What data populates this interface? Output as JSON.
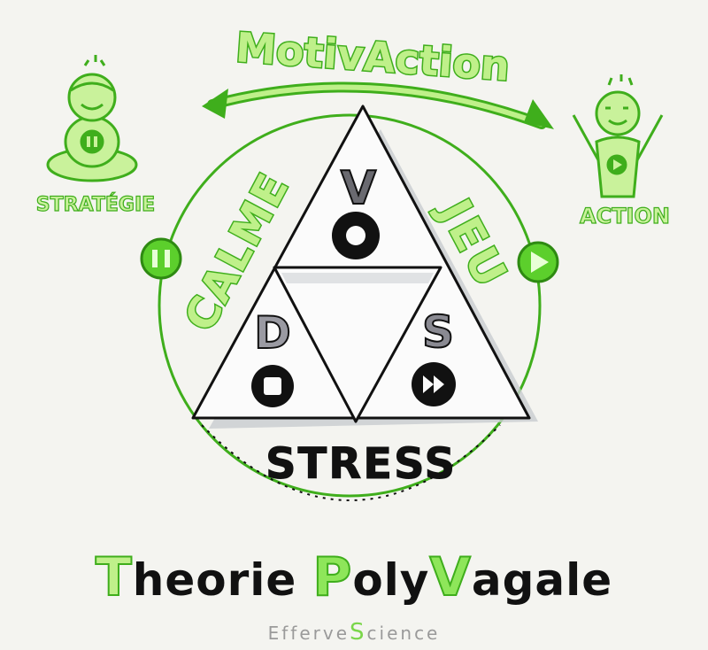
{
  "header": {
    "banner": "MotivAction"
  },
  "left_figure": {
    "label": "STRATÉGIE",
    "icon": "pause-icon"
  },
  "right_figure": {
    "label": "ACTION",
    "icon": "play-icon"
  },
  "triangle": {
    "left_side_label": "CALME",
    "right_side_label": "JEU",
    "bottom_label": "STRESS",
    "top": {
      "letter": "V",
      "icon": "record-icon"
    },
    "bottom_left": {
      "letter": "D",
      "icon": "stop-icon"
    },
    "bottom_right": {
      "letter": "S",
      "icon": "fast-forward-icon"
    }
  },
  "title": {
    "part1_initial": "T",
    "part1_rest": "heorie",
    "part2_initial": "P",
    "part2_rest": "oly",
    "part3_initial": "V",
    "part3_rest": "agale"
  },
  "footer": {
    "brand_part1": "Efferve",
    "brand_initial": "S",
    "brand_part2": "cience"
  },
  "colors": {
    "green": "#3fae1c",
    "light_green": "#bff08a",
    "ink": "#111111",
    "paper": "#f4f4f0"
  }
}
